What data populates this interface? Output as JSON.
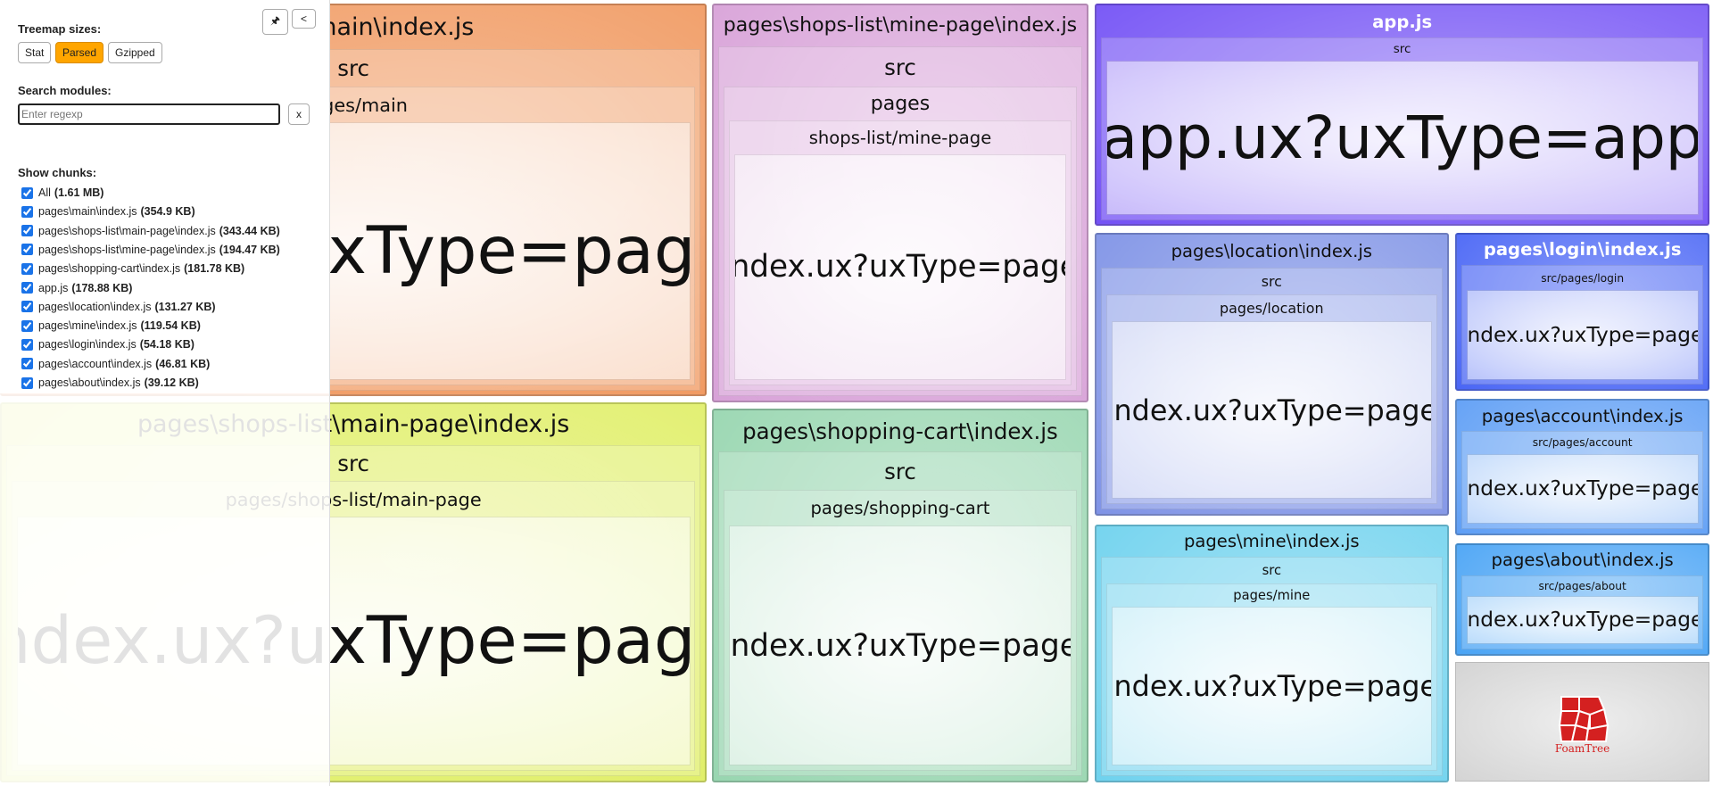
{
  "sidebar": {
    "sizes_label": "Treemap sizes:",
    "size_buttons": [
      "Stat",
      "Parsed",
      "Gzipped"
    ],
    "active_button": 1,
    "search_label": "Search modules:",
    "search_placeholder": "Enter regexp",
    "clear_button": "x",
    "pin_button": "🖈",
    "collapse_button": "<",
    "chunks_label": "Show chunks:",
    "chunks": [
      {
        "name": "All",
        "size": "(1.61 MB)"
      },
      {
        "name": "pages\\main\\index.js",
        "size": "(354.9 KB)"
      },
      {
        "name": "pages\\shops-list\\main-page\\index.js",
        "size": "(343.44 KB)"
      },
      {
        "name": "pages\\shops-list\\mine-page\\index.js",
        "size": "(194.47 KB)"
      },
      {
        "name": "pages\\shopping-cart\\index.js",
        "size": "(181.78 KB)"
      },
      {
        "name": "app.js",
        "size": "(178.88 KB)"
      },
      {
        "name": "pages\\location\\index.js",
        "size": "(131.27 KB)"
      },
      {
        "name": "pages\\mine\\index.js",
        "size": "(119.54 KB)"
      },
      {
        "name": "pages\\login\\index.js",
        "size": "(54.18 KB)"
      },
      {
        "name": "pages\\account\\index.js",
        "size": "(46.81 KB)"
      },
      {
        "name": "pages\\about\\index.js",
        "size": "(39.12 KB)"
      }
    ]
  },
  "cells": [
    {
      "color": "#f0955a",
      "levels": [
        "pages\\main\\index.js",
        "src",
        "pages/main"
      ],
      "leaf": "index.ux?uxType=page"
    },
    {
      "color": "#dfee62",
      "levels": [
        "pages\\shops-list\\main-page\\index.js",
        "src",
        "pages/shops-list/main-page"
      ],
      "leaf": "index.ux?uxType=page"
    },
    {
      "color": "#d8a2d8",
      "levels": [
        "pages\\shops-list\\mine-page\\index.js",
        "src",
        "pages",
        "shops-list/mine-page"
      ],
      "leaf": "index.ux?uxType=page"
    },
    {
      "color": "#98d6b0",
      "levels": [
        "pages\\shopping-cart\\index.js",
        "src",
        "pages/shopping-cart"
      ],
      "leaf": "index.ux?uxType=page"
    },
    {
      "color": "#7452f5",
      "levels": [
        "app.js",
        "src"
      ],
      "leaf": "app.ux?uxType=app"
    },
    {
      "color": "#7f93e6",
      "levels": [
        "pages\\location\\index.js",
        "src",
        "pages/location"
      ],
      "leaf": "index.ux?uxType=page"
    },
    {
      "color": "#6fd2ee",
      "levels": [
        "pages\\mine\\index.js",
        "src",
        "pages/mine"
      ],
      "leaf": "index.ux?uxType=page"
    },
    {
      "color": "#4a66f5",
      "levels": [
        "pages\\login\\index.js",
        "src/pages/login"
      ],
      "leaf": "index.ux?uxType=page"
    },
    {
      "color": "#5e9ef5",
      "levels": [
        "pages\\account\\index.js",
        "src/pages/account"
      ],
      "leaf": "index.ux?uxType=page"
    },
    {
      "color": "#4aa4f5",
      "levels": [
        "pages\\about\\index.js",
        "src/pages/about"
      ],
      "leaf": "index.ux?uxType=page"
    }
  ],
  "logo": "FoamTree"
}
